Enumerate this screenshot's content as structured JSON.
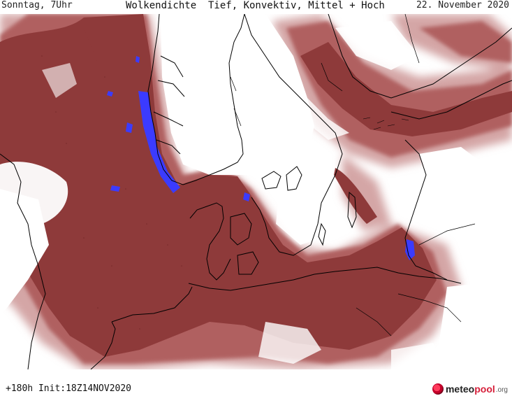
{
  "header": {
    "day_time": "Sonntag, 7Uhr",
    "title": "Wolkendichte  Tief, Konvektiv, Mittel + Hoch",
    "date": "22. November 2020"
  },
  "footer": {
    "run_info": "+180h Init:18Z14NOV2020"
  },
  "logo": {
    "part1": "meteo",
    "part2": "pool",
    "part3": ".org"
  },
  "colors": {
    "cloud_dense": "#8e3a3a",
    "cloud_mid": "#b06060",
    "cloud_light": "#d4a6a6",
    "convective": "#3b3bff",
    "coast": "#000000",
    "land": "#ffffff"
  }
}
